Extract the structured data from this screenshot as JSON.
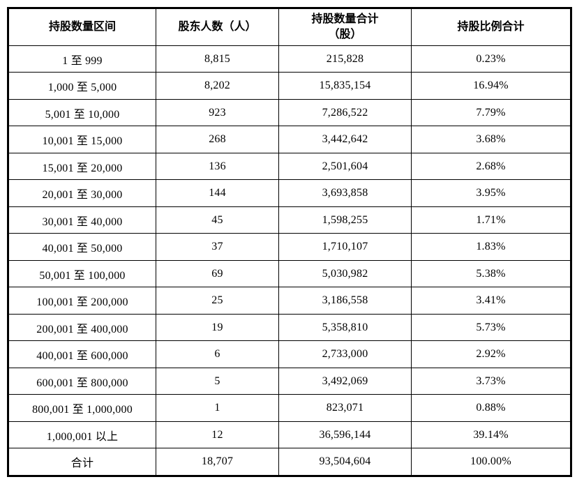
{
  "colors": {
    "background": "#ffffff",
    "border": "#000000",
    "text": "#000000"
  },
  "table": {
    "columns": [
      {
        "label": "持股数量区间"
      },
      {
        "label": "股东人数（人）"
      },
      {
        "label": "持股数量合计\n（股）"
      },
      {
        "label": "持股比例合计"
      }
    ],
    "rows": [
      [
        "1 至 999",
        "8,815",
        "215,828",
        "0.23%"
      ],
      [
        "1,000 至 5,000",
        "8,202",
        "15,835,154",
        "16.94%"
      ],
      [
        "5,001 至 10,000",
        "923",
        "7,286,522",
        "7.79%"
      ],
      [
        "10,001 至 15,000",
        "268",
        "3,442,642",
        "3.68%"
      ],
      [
        "15,001 至 20,000",
        "136",
        "2,501,604",
        "2.68%"
      ],
      [
        "20,001 至 30,000",
        "144",
        "3,693,858",
        "3.95%"
      ],
      [
        "30,001 至 40,000",
        "45",
        "1,598,255",
        "1.71%"
      ],
      [
        "40,001 至 50,000",
        "37",
        "1,710,107",
        "1.83%"
      ],
      [
        "50,001 至 100,000",
        "69",
        "5,030,982",
        "5.38%"
      ],
      [
        "100,001 至 200,000",
        "25",
        "3,186,558",
        "3.41%"
      ],
      [
        "200,001 至 400,000",
        "19",
        "5,358,810",
        "5.73%"
      ],
      [
        "400,001 至 600,000",
        "6",
        "2,733,000",
        "2.92%"
      ],
      [
        "600,001 至 800,000",
        "5",
        "3,492,069",
        "3.73%"
      ],
      [
        "800,001 至 1,000,000",
        "1",
        "823,071",
        "0.88%"
      ],
      [
        "1,000,001 以上",
        "12",
        "36,596,144",
        "39.14%"
      ],
      [
        "合计",
        "18,707",
        "93,504,604",
        "100.00%"
      ]
    ]
  }
}
